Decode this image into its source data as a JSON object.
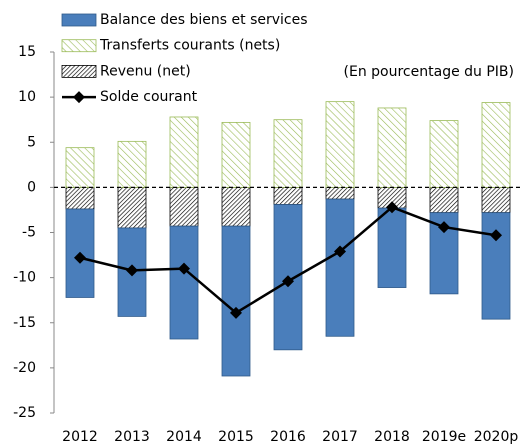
{
  "chart_data": {
    "type": "bar",
    "annotation": "(En pourcentage du PIB)",
    "categories": [
      "2012",
      "2013",
      "2014",
      "2015",
      "2016",
      "2017",
      "2018",
      "2019e",
      "2020p"
    ],
    "series": [
      {
        "name": "Balance des biens et services",
        "color": "#4a7ebb",
        "values": [
          -9.8,
          -9.8,
          -12.5,
          -16.6,
          -16.1,
          -15.2,
          -8.8,
          -9.0,
          -11.8
        ]
      },
      {
        "name": "Transferts courants (nets)",
        "color": "#9bbb59",
        "values": [
          4.4,
          5.1,
          7.8,
          7.2,
          7.5,
          9.5,
          8.8,
          7.4,
          9.4
        ]
      },
      {
        "name": "Revenu (net)",
        "color": "#000000",
        "values": [
          -2.4,
          -4.5,
          -4.3,
          -4.3,
          -1.9,
          -1.3,
          -2.3,
          -2.8,
          -2.8
        ]
      },
      {
        "name": "Solde courant",
        "color": "#000000",
        "type": "line",
        "values": [
          -7.8,
          -9.2,
          -9.0,
          -13.9,
          -10.4,
          -7.1,
          -2.2,
          -4.4,
          -5.3
        ]
      }
    ],
    "ylim": [
      -25,
      15
    ],
    "yticks": [
      -25,
      -20,
      -15,
      -10,
      -5,
      0,
      5,
      10,
      15
    ]
  }
}
